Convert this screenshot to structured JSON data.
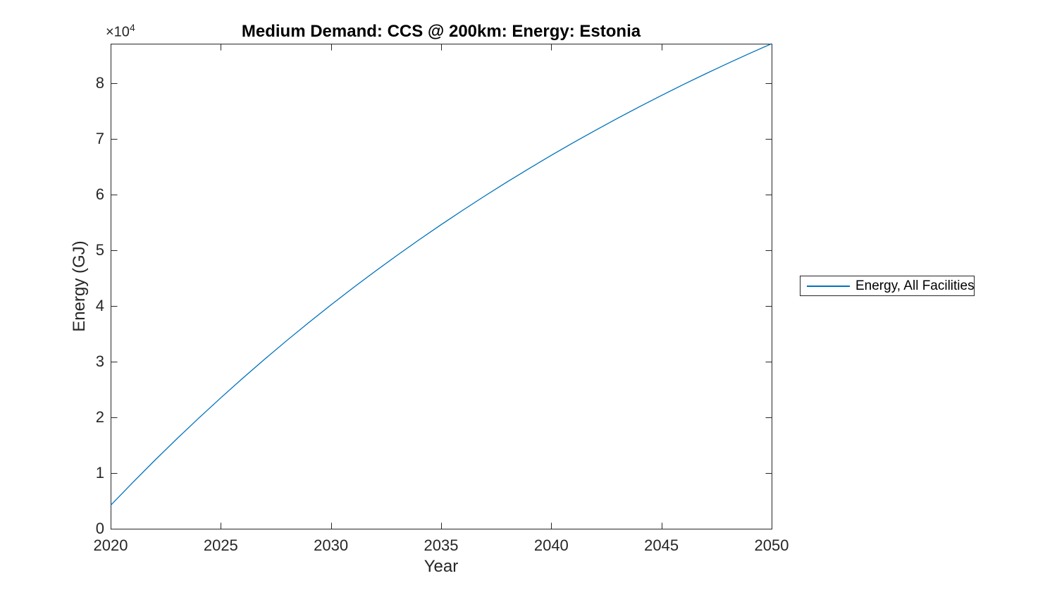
{
  "figure": {
    "title": "Medium Demand: CCS @ 200km: Energy: Estonia",
    "xlabel": "Year",
    "ylabel": "Energy (GJ)",
    "y_multiplier": {
      "base": "×10",
      "exp": "4"
    },
    "colors": {
      "line": "#0072BD",
      "axis": "#262626",
      "tick_text": "#262626",
      "title_text": "#000000",
      "background": "#ffffff"
    }
  },
  "chart_data": {
    "type": "line",
    "title": "Medium Demand: CCS @ 200km: Energy: Estonia",
    "xlabel": "Year",
    "ylabel": "Energy (GJ)",
    "y_axis_multiplier": "1e4",
    "xlim": [
      2020,
      2050
    ],
    "ylim": [
      0,
      87105
    ],
    "xticks": [
      2020,
      2025,
      2030,
      2035,
      2040,
      2045,
      2050
    ],
    "yticks": [
      0,
      10000,
      20000,
      30000,
      40000,
      50000,
      60000,
      70000,
      80000
    ],
    "ytick_labels": [
      "0",
      "1",
      "2",
      "3",
      "4",
      "5",
      "6",
      "7",
      "8"
    ],
    "grid": false,
    "box": true,
    "legend_position": "outside-right",
    "series": [
      {
        "name": "Energy, All Facilities",
        "color": "#0072BD",
        "x": [
          2020,
          2021,
          2022,
          2023,
          2024,
          2025,
          2026,
          2027,
          2028,
          2029,
          2030,
          2031,
          2032,
          2033,
          2034,
          2035,
          2036,
          2037,
          2038,
          2039,
          2040,
          2041,
          2042,
          2043,
          2044,
          2045,
          2046,
          2047,
          2048,
          2049,
          2050
        ],
        "y": [
          4200,
          8290,
          12265,
          16124,
          19872,
          23511,
          27046,
          30479,
          33812,
          37049,
          40194,
          43247,
          46212,
          49092,
          51889,
          54606,
          57243,
          59805,
          62293,
          64709,
          67056,
          69335,
          71548,
          73698,
          75785,
          77812,
          79781,
          81693,
          83550,
          85354,
          87105
        ]
      }
    ]
  }
}
